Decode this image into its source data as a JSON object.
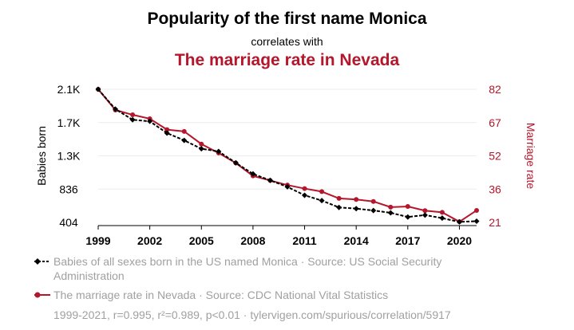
{
  "header": {
    "title": "Popularity of the first name Monica",
    "connector": "correlates with",
    "subtitle": "The marriage rate in Nevada"
  },
  "colors": {
    "series1": "#000000",
    "series2": "#b5162b",
    "grid": "#ececec",
    "muted": "#a0a0a0"
  },
  "chart_data": {
    "type": "line",
    "x": [
      1999,
      2000,
      2001,
      2002,
      2003,
      2004,
      2005,
      2006,
      2007,
      2008,
      2009,
      2010,
      2011,
      2012,
      2013,
      2014,
      2015,
      2016,
      2017,
      2018,
      2019,
      2020,
      2021
    ],
    "xticks": [
      "1999",
      "2002",
      "2005",
      "2008",
      "2011",
      "2014",
      "2017",
      "2020"
    ],
    "xlim": [
      1999,
      2021
    ],
    "series": [
      {
        "name": "Babies of all sexes born in the US named Monica",
        "axis": "left",
        "values": [
          2150,
          1890,
          1750,
          1730,
          1575,
          1480,
          1370,
          1335,
          1185,
          1040,
          955,
          870,
          760,
          690,
          600,
          585,
          560,
          530,
          475,
          500,
          460,
          410,
          420
        ]
      },
      {
        "name": "The marriage rate in Nevada",
        "axis": "right",
        "values": [
          82,
          72.5,
          70.3,
          68.5,
          63.5,
          62.7,
          56.9,
          52.8,
          48.2,
          42.3,
          40.2,
          38.1,
          36.5,
          35.1,
          32.0,
          31.5,
          30.6,
          28.0,
          28.3,
          26.4,
          25.6,
          21.3,
          26.5
        ]
      }
    ],
    "left_axis": {
      "label": "Babies born",
      "ticks": [
        "2.1K",
        "1.7K",
        "1.3K",
        "836",
        "404"
      ],
      "ylim": [
        404,
        2150
      ]
    },
    "right_axis": {
      "label": "Marriage rate",
      "ticks": [
        "82",
        "67",
        "52",
        "36",
        "21"
      ],
      "ylim": [
        21,
        82
      ]
    },
    "legend": [
      {
        "marker": "diamond-dashed",
        "label": "Babies of all sexes born in the US named Monica",
        "source": "Source: US Social Security Administration"
      },
      {
        "marker": "circle-solid",
        "label": "The marriage rate in Nevada",
        "source": "Source: CDC National Vital Statistics"
      }
    ]
  },
  "legend_text": {
    "series1": "Babies of all sexes born in the US named Monica · Source: US Social Security Administration",
    "series2": "The marriage rate in Nevada · Source: CDC National Vital Statistics"
  },
  "footer": "1999-2021, r=0.995, r²=0.989, p<0.01 · tylervigen.com/spurious/correlation/5917"
}
